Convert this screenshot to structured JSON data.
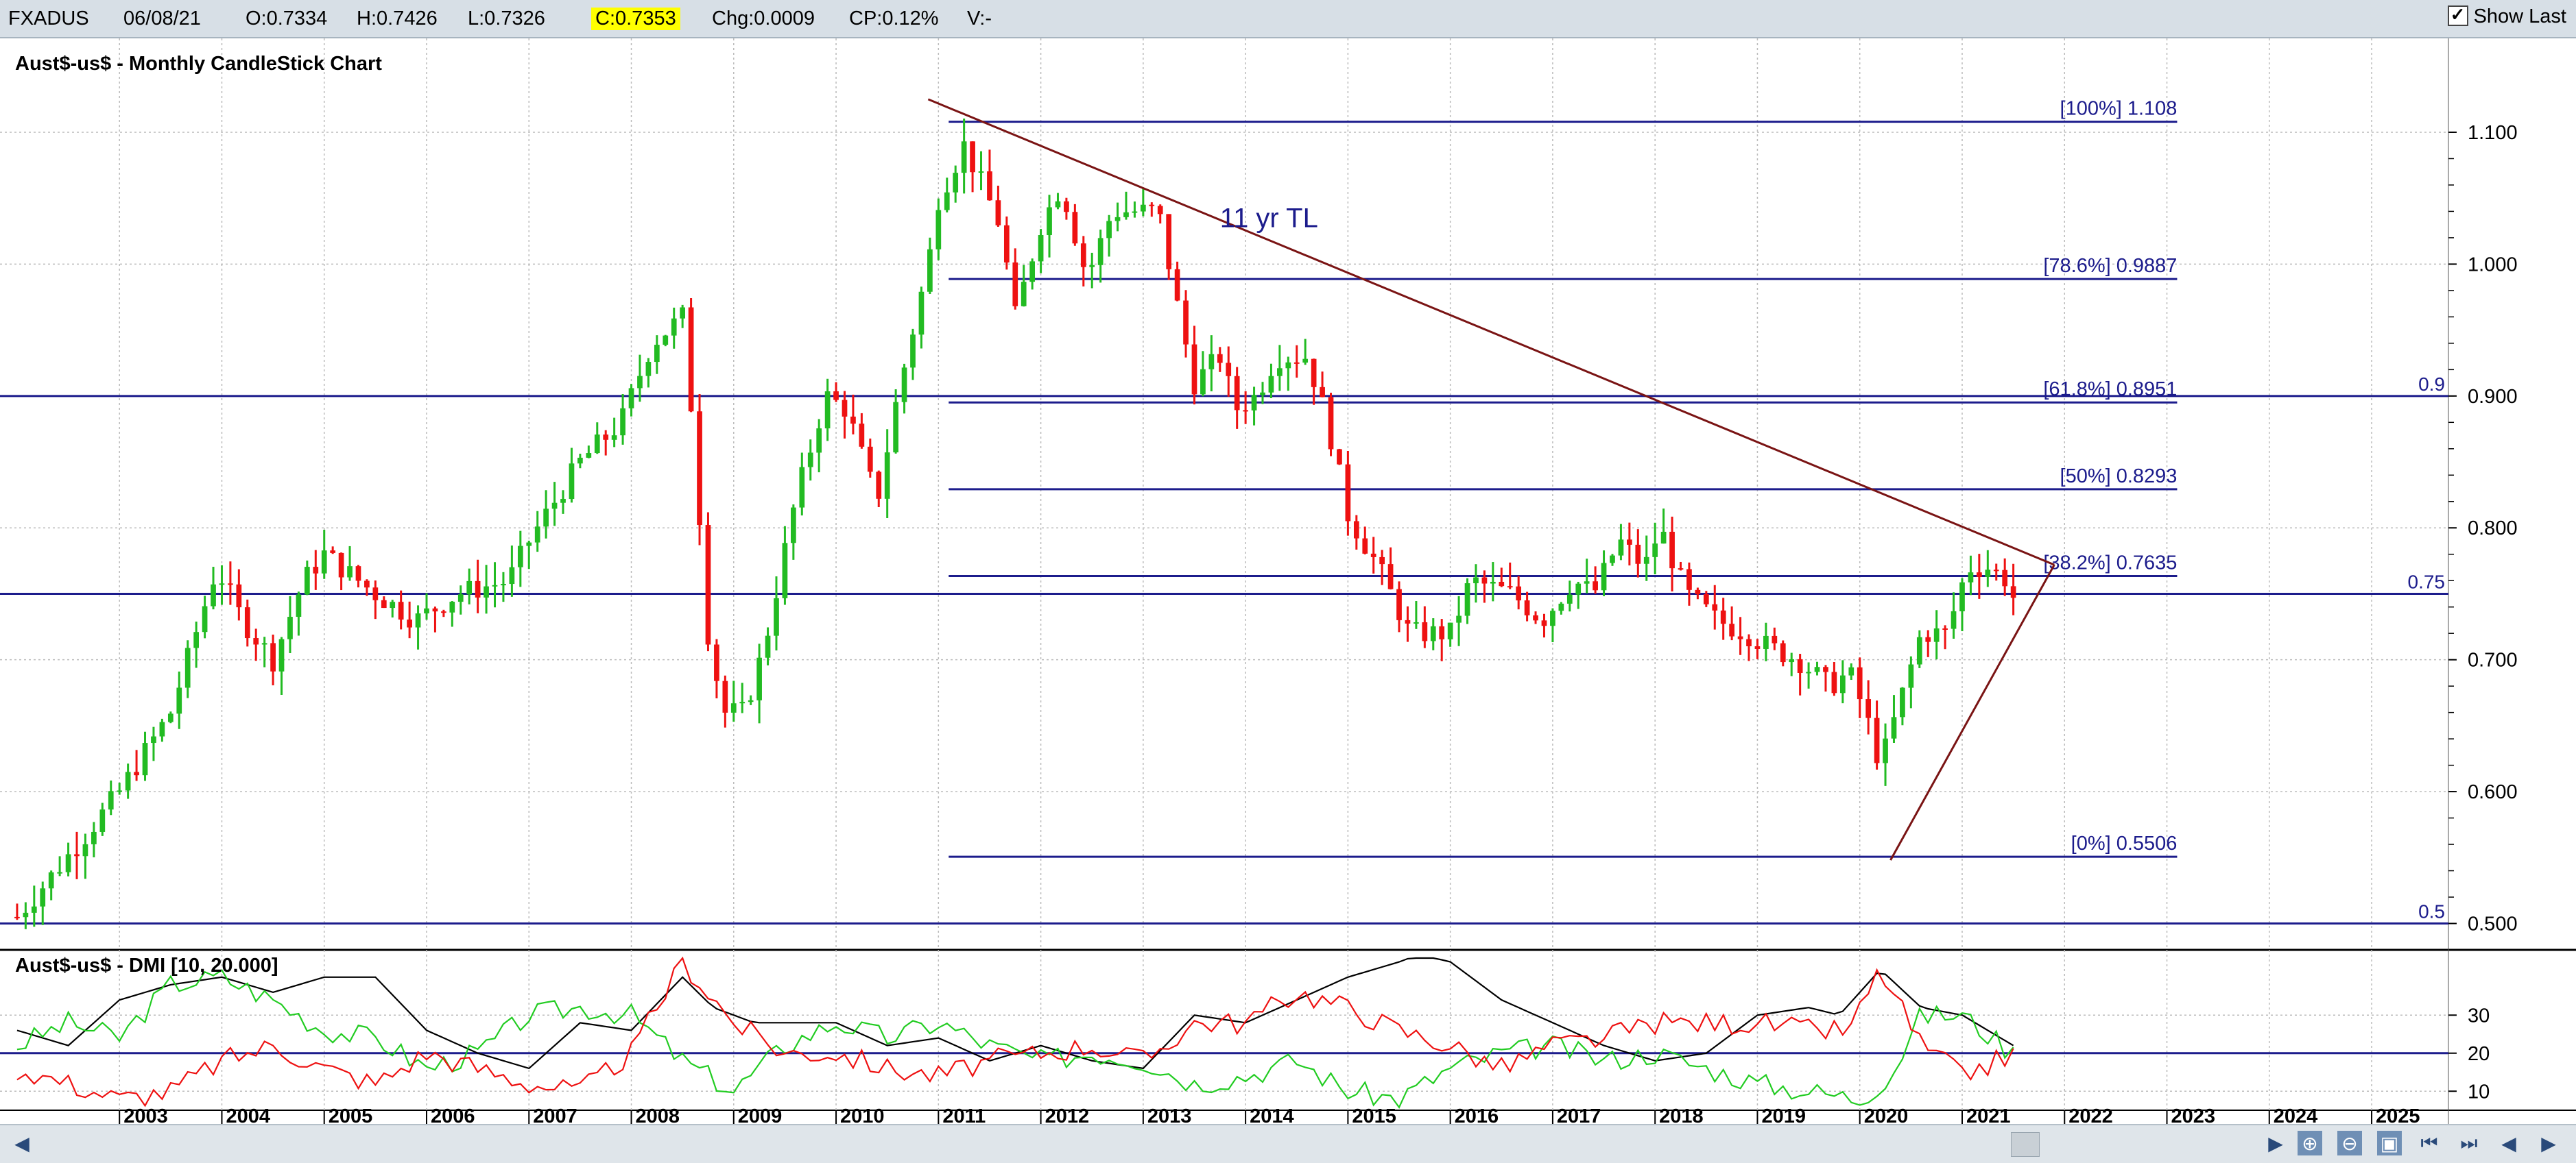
{
  "topbar": {
    "symbol": "FXADUS",
    "date": "06/08/21",
    "open": "O:0.7334",
    "high": "H:0.7426",
    "low": "L:0.7326",
    "close": "C:0.7353",
    "change": "Chg:0.0009",
    "change_pct": "CP:0.12%",
    "volume": "V:-",
    "show_last_label": "Show Last",
    "show_last_checked": true
  },
  "colors": {
    "up": "#22bb22",
    "down": "#ee1111",
    "hline": "#1c1c8c",
    "trendline": "#7a1414",
    "dmi_adx": "#000000",
    "dmi_plus": "#22cc22",
    "dmi_minus": "#ee1111",
    "grid": "#bbbbbb"
  },
  "chart_data": [
    {
      "type": "candlestick",
      "title": "Aust$-us$ - Monthly CandleStick Chart",
      "x_ticks": [
        "2003",
        "2004",
        "2005",
        "2006",
        "2007",
        "2008",
        "2009",
        "2010",
        "2011",
        "2012",
        "2013",
        "2014",
        "2015",
        "2016",
        "2017",
        "2018",
        "2019",
        "2020",
        "2021",
        "2022",
        "2023",
        "2024",
        "2025"
      ],
      "y_ticks": [
        "1.100",
        "1.000",
        "0.900",
        "0.800",
        "0.700",
        "0.600",
        "0.500"
      ],
      "ylim": [
        0.48,
        1.14
      ],
      "xlim": [
        2001.9,
        2025.75
      ],
      "grid": true,
      "anchors": [
        [
          2002.0,
          0.505
        ],
        [
          2002.7,
          0.57
        ],
        [
          2003.0,
          0.6
        ],
        [
          2003.5,
          0.66
        ],
        [
          2003.95,
          0.77
        ],
        [
          2004.2,
          0.73
        ],
        [
          2004.5,
          0.7
        ],
        [
          2004.8,
          0.76
        ],
        [
          2005.0,
          0.78
        ],
        [
          2005.5,
          0.75
        ],
        [
          2005.9,
          0.73
        ],
        [
          2006.3,
          0.75
        ],
        [
          2006.8,
          0.76
        ],
        [
          2007.0,
          0.79
        ],
        [
          2007.5,
          0.85
        ],
        [
          2007.9,
          0.88
        ],
        [
          2008.2,
          0.94
        ],
        [
          2008.5,
          0.96
        ],
        [
          2008.6,
          0.88
        ],
        [
          2008.75,
          0.72
        ],
        [
          2008.9,
          0.66
        ],
        [
          2009.1,
          0.66
        ],
        [
          2009.3,
          0.71
        ],
        [
          2009.6,
          0.82
        ],
        [
          2009.9,
          0.9
        ],
        [
          2010.1,
          0.89
        ],
        [
          2010.4,
          0.82
        ],
        [
          2010.6,
          0.9
        ],
        [
          2010.9,
          1.0
        ],
        [
          2011.0,
          1.05
        ],
        [
          2011.25,
          1.09
        ],
        [
          2011.6,
          1.03
        ],
        [
          2011.75,
          0.96
        ],
        [
          2012.0,
          1.03
        ],
        [
          2012.2,
          1.06
        ],
        [
          2012.45,
          0.99
        ],
        [
          2012.7,
          1.04
        ],
        [
          2012.9,
          1.04
        ],
        [
          2013.15,
          1.04
        ],
        [
          2013.3,
          0.98
        ],
        [
          2013.5,
          0.91
        ],
        [
          2013.75,
          0.93
        ],
        [
          2013.9,
          0.89
        ],
        [
          2014.1,
          0.9
        ],
        [
          2014.3,
          0.93
        ],
        [
          2014.6,
          0.93
        ],
        [
          2014.8,
          0.88
        ],
        [
          2015.0,
          0.81
        ],
        [
          2015.3,
          0.77
        ],
        [
          2015.6,
          0.72
        ],
        [
          2015.8,
          0.72
        ],
        [
          2016.0,
          0.72
        ],
        [
          2016.2,
          0.76
        ],
        [
          2016.6,
          0.75
        ],
        [
          2016.9,
          0.73
        ],
        [
          2017.2,
          0.76
        ],
        [
          2017.4,
          0.75
        ],
        [
          2017.65,
          0.79
        ],
        [
          2017.9,
          0.77
        ],
        [
          2018.05,
          0.8
        ],
        [
          2018.3,
          0.75
        ],
        [
          2018.6,
          0.73
        ],
        [
          2018.9,
          0.72
        ],
        [
          2019.1,
          0.71
        ],
        [
          2019.4,
          0.7
        ],
        [
          2019.7,
          0.68
        ],
        [
          2019.9,
          0.69
        ],
        [
          2020.05,
          0.66
        ],
        [
          2020.2,
          0.62
        ],
        [
          2020.4,
          0.67
        ],
        [
          2020.6,
          0.72
        ],
        [
          2020.85,
          0.72
        ],
        [
          2021.05,
          0.77
        ],
        [
          2021.25,
          0.77
        ],
        [
          2021.45,
          0.76
        ],
        [
          2021.55,
          0.735
        ]
      ],
      "fib_levels": [
        {
          "label": "[100%] 1.108",
          "value": 1.108
        },
        {
          "label": "[78.6%] 0.9887",
          "value": 0.9887
        },
        {
          "label": "[61.8%] 0.8951",
          "value": 0.8951
        },
        {
          "label": "[50%] 0.8293",
          "value": 0.8293
        },
        {
          "label": "[38.2%] 0.7635",
          "value": 0.7635
        },
        {
          "label": "[0%] 0.5506",
          "value": 0.5506
        }
      ],
      "fib_x_range": [
        2011.1,
        2023.1
      ],
      "horizontal_lines": [
        {
          "label": "0.9",
          "value": 0.9
        },
        {
          "label": "0.75",
          "value": 0.75
        },
        {
          "label": "0.5",
          "value": 0.5
        }
      ],
      "trendlines": [
        {
          "from": [
            2010.9,
            1.125
          ],
          "to": [
            2021.9,
            0.772
          ]
        },
        {
          "from": [
            2020.3,
            0.548
          ],
          "to": [
            2021.9,
            0.772
          ]
        }
      ],
      "annotation": {
        "text": "11 yr TL",
        "x": 2013.75,
        "y": 1.028
      }
    },
    {
      "type": "line",
      "title": "Aust$-us$ - DMI [10, 20.000]",
      "y_ticks": [
        "30",
        "20",
        "10"
      ],
      "reference_line": 20,
      "ylim": [
        5,
        45
      ],
      "series": [
        {
          "role": "ADX",
          "anchors": [
            [
              2002,
              26
            ],
            [
              2002.5,
              22
            ],
            [
              2003,
              34
            ],
            [
              2003.5,
              38
            ],
            [
              2004,
              40
            ],
            [
              2004.5,
              36
            ],
            [
              2005,
              40
            ],
            [
              2005.5,
              40
            ],
            [
              2006,
              26
            ],
            [
              2006.5,
              20
            ],
            [
              2007,
              16
            ],
            [
              2007.5,
              28
            ],
            [
              2008,
              26
            ],
            [
              2008.5,
              40
            ],
            [
              2008.8,
              32
            ],
            [
              2009.2,
              28
            ],
            [
              2009.6,
              28
            ],
            [
              2010,
              28
            ],
            [
              2010.5,
              22
            ],
            [
              2011,
              24
            ],
            [
              2011.5,
              18
            ],
            [
              2012,
              22
            ],
            [
              2012.5,
              18
            ],
            [
              2013,
              16
            ],
            [
              2013.5,
              30
            ],
            [
              2014,
              28
            ],
            [
              2014.5,
              34
            ],
            [
              2015,
              40
            ],
            [
              2015.5,
              44
            ],
            [
              2015.7,
              46
            ],
            [
              2016,
              44
            ],
            [
              2016.5,
              34
            ],
            [
              2017,
              28
            ],
            [
              2017.5,
              22
            ],
            [
              2018,
              18
            ],
            [
              2018.5,
              20
            ],
            [
              2019,
              30
            ],
            [
              2019.5,
              32
            ],
            [
              2019.8,
              30
            ],
            [
              2020.2,
              42
            ],
            [
              2020.6,
              32
            ],
            [
              2021,
              30
            ],
            [
              2021.5,
              22
            ]
          ]
        },
        {
          "role": "+DI",
          "anchors": [
            [
              2002,
              22
            ],
            [
              2002.5,
              28
            ],
            [
              2003,
              24
            ],
            [
              2003.5,
              38
            ],
            [
              2004,
              40
            ],
            [
              2004.5,
              34
            ],
            [
              2005,
              26
            ],
            [
              2005.5,
              24
            ],
            [
              2006,
              16
            ],
            [
              2006.5,
              20
            ],
            [
              2007,
              30
            ],
            [
              2007.5,
              32
            ],
            [
              2008,
              30
            ],
            [
              2008.5,
              18
            ],
            [
              2009,
              10
            ],
            [
              2009.5,
              22
            ],
            [
              2010,
              28
            ],
            [
              2010.5,
              24
            ],
            [
              2011,
              28
            ],
            [
              2011.5,
              22
            ],
            [
              2012,
              18
            ],
            [
              2012.5,
              20
            ],
            [
              2013,
              18
            ],
            [
              2013.5,
              12
            ],
            [
              2014,
              14
            ],
            [
              2014.5,
              18
            ],
            [
              2015,
              10
            ],
            [
              2015.5,
              8
            ],
            [
              2016,
              16
            ],
            [
              2016.5,
              20
            ],
            [
              2017,
              22
            ],
            [
              2017.5,
              18
            ],
            [
              2018,
              20
            ],
            [
              2018.5,
              16
            ],
            [
              2019,
              12
            ],
            [
              2019.5,
              10
            ],
            [
              2020,
              8
            ],
            [
              2020.3,
              14
            ],
            [
              2020.6,
              30
            ],
            [
              2021,
              30
            ],
            [
              2021.5,
              20
            ]
          ]
        },
        {
          "role": "-DI",
          "anchors": [
            [
              2002,
              16
            ],
            [
              2002.5,
              12
            ],
            [
              2003,
              8
            ],
            [
              2003.5,
              10
            ],
            [
              2004,
              18
            ],
            [
              2004.5,
              22
            ],
            [
              2005,
              16
            ],
            [
              2005.5,
              12
            ],
            [
              2006,
              20
            ],
            [
              2006.5,
              16
            ],
            [
              2007,
              12
            ],
            [
              2007.5,
              10
            ],
            [
              2008,
              20
            ],
            [
              2008.5,
              44
            ],
            [
              2009,
              28
            ],
            [
              2009.5,
              20
            ],
            [
              2010,
              20
            ],
            [
              2010.5,
              16
            ],
            [
              2011,
              14
            ],
            [
              2011.5,
              18
            ],
            [
              2012,
              20
            ],
            [
              2012.5,
              22
            ],
            [
              2013,
              18
            ],
            [
              2013.5,
              28
            ],
            [
              2014,
              28
            ],
            [
              2014.5,
              36
            ],
            [
              2015,
              32
            ],
            [
              2015.5,
              26
            ],
            [
              2016,
              22
            ],
            [
              2016.5,
              16
            ],
            [
              2017,
              22
            ],
            [
              2017.5,
              24
            ],
            [
              2018,
              28
            ],
            [
              2018.5,
              28
            ],
            [
              2019,
              28
            ],
            [
              2019.5,
              26
            ],
            [
              2019.9,
              26
            ],
            [
              2020.2,
              42
            ],
            [
              2020.6,
              22
            ],
            [
              2021,
              14
            ],
            [
              2021.5,
              20
            ]
          ]
        }
      ]
    }
  ],
  "navigation": {
    "buttons": [
      "◀",
      "▶",
      "⏮",
      "⏭",
      "◀",
      "▶"
    ]
  }
}
